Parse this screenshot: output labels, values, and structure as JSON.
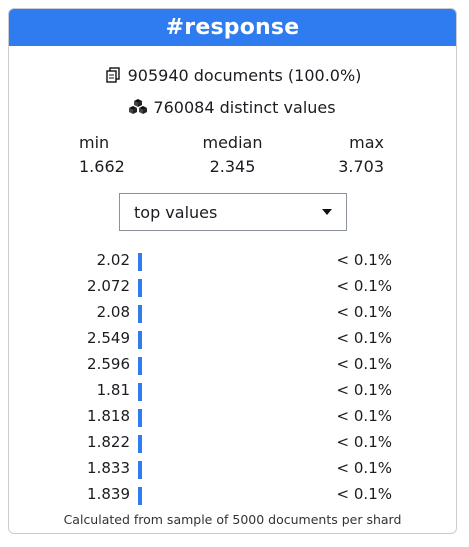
{
  "header": {
    "title": "#response"
  },
  "summary": {
    "documents_text": "905940 documents (100.0%)",
    "distinct_text": "760084 distinct values",
    "documents_icon": "documents-icon",
    "distinct_icon": "cubes-icon"
  },
  "stats": {
    "min_label": "min",
    "median_label": "median",
    "max_label": "max",
    "min_value": "1.662",
    "median_value": "2.345",
    "max_value": "3.703"
  },
  "mode_select": {
    "selected": "top values"
  },
  "top_values": [
    {
      "value": "2.02",
      "pct": "< 0.1%"
    },
    {
      "value": "2.072",
      "pct": "< 0.1%"
    },
    {
      "value": "2.08",
      "pct": "< 0.1%"
    },
    {
      "value": "2.549",
      "pct": "< 0.1%"
    },
    {
      "value": "2.596",
      "pct": "< 0.1%"
    },
    {
      "value": "1.81",
      "pct": "< 0.1%"
    },
    {
      "value": "1.818",
      "pct": "< 0.1%"
    },
    {
      "value": "1.822",
      "pct": "< 0.1%"
    },
    {
      "value": "1.833",
      "pct": "< 0.1%"
    },
    {
      "value": "1.839",
      "pct": "< 0.1%"
    }
  ],
  "footer": {
    "text": "Calculated from sample of 5000 documents per shard"
  },
  "colors": {
    "accent": "#2f7bf0"
  }
}
